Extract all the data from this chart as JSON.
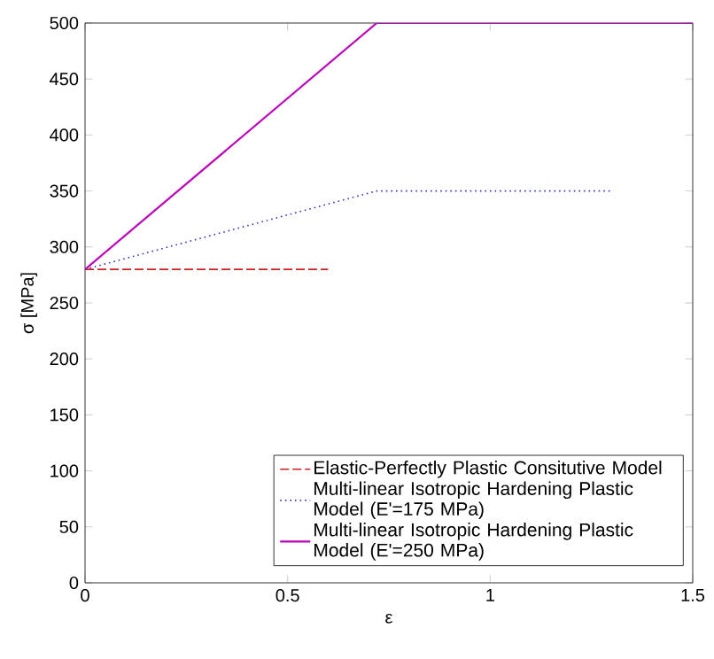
{
  "chart_data": {
    "type": "line",
    "xlabel": "ε",
    "ylabel": "σ [MPa]",
    "xlim": [
      0,
      1.5
    ],
    "xticks": [
      0,
      0.5,
      1,
      1.5
    ],
    "ylim": [
      0,
      500
    ],
    "yticks": [
      0,
      50,
      100,
      150,
      200,
      250,
      300,
      350,
      400,
      450,
      500
    ],
    "legend": "bottom right",
    "grid": false,
    "marker": "none",
    "series": [
      {
        "name": "Elastic-Perfectly Plastic Consitutive Model",
        "color": "#cc2222",
        "line_style": "dashed",
        "x": [
          0,
          0.6
        ],
        "values": [
          280,
          280
        ]
      },
      {
        "name": "Multi-linear Isotropic Hardening Plastic Model (E'=175 MPa)",
        "color": "#3333bb",
        "line_style": "dotted",
        "x": [
          0,
          0.72,
          1.3
        ],
        "values": [
          280,
          350,
          350
        ]
      },
      {
        "name": "Multi-linear Isotropic Hardening Plastic Model (E'=250 MPa)",
        "color": "#bb00bb",
        "line_style": "solid",
        "x": [
          0,
          0.72,
          1.5
        ],
        "values": [
          280,
          500,
          500
        ]
      }
    ]
  }
}
